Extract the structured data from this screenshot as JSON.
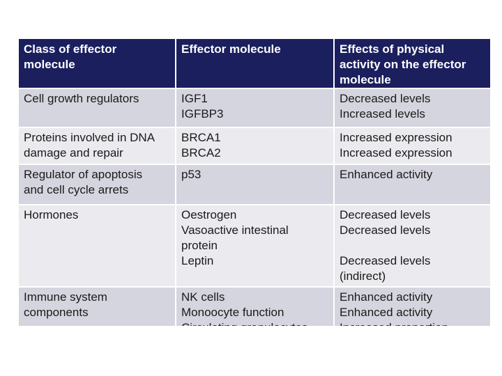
{
  "table": {
    "headers": [
      "Class of effector molecule",
      "Effector molecule",
      "Effects of physical activity on the effector molecule"
    ],
    "rows": [
      {
        "class_lines": [
          "Cell growth regulators"
        ],
        "molecule_lines": [
          "IGF1",
          "IGFBP3"
        ],
        "effect_lines": [
          "Decreased levels",
          "Increased levels"
        ]
      },
      {
        "class_lines": [
          "Proteins involved in DNA",
          "damage and repair"
        ],
        "molecule_lines": [
          "BRCA1",
          "BRCA2"
        ],
        "effect_lines": [
          "Increased expression",
          "Increased expression"
        ]
      },
      {
        "class_lines": [
          "Regulator of apoptosis",
          "and cell cycle arrets"
        ],
        "molecule_lines": [
          "p53"
        ],
        "effect_lines": [
          "Enhanced activity"
        ]
      },
      {
        "class_lines": [
          "Hormones"
        ],
        "molecule_lines": [
          "Oestrogen",
          "Vasoactive intestinal",
          "protein",
          "Leptin"
        ],
        "effect_lines": [
          "Decreased levels",
          "Decreased levels",
          "",
          "Decreased levels",
          "(indirect)"
        ]
      },
      {
        "class_lines": [
          "Immune system",
          "components"
        ],
        "molecule_lines": [
          "NK cells",
          "Monoocyte function",
          "Circulating granulocytes"
        ],
        "effect_lines": [
          "Enhanced activity",
          "Enhanced activity",
          "Increased proportion"
        ]
      }
    ]
  }
}
